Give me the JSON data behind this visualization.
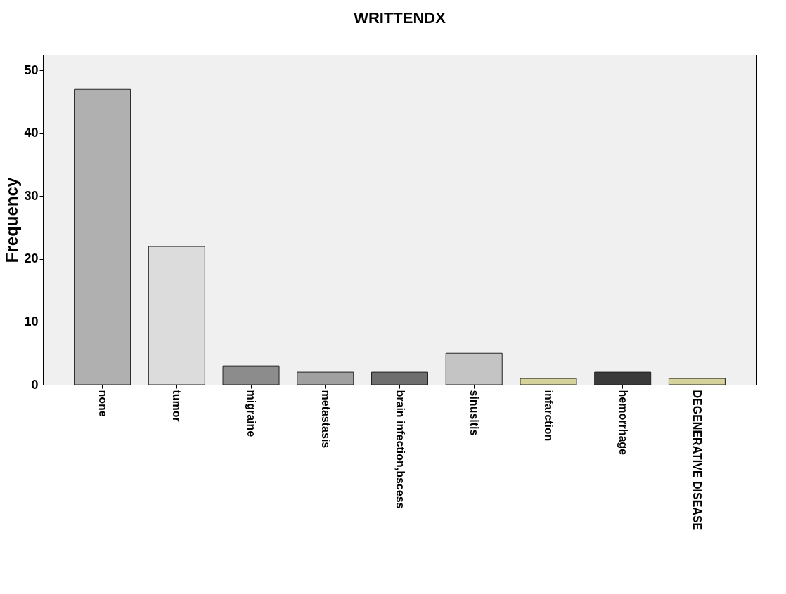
{
  "chart_data": {
    "type": "bar",
    "title": "WRITTENDX",
    "ylabel": "Frequency",
    "categories": [
      "none",
      "tumor",
      "migraine",
      "metastasis",
      "brain infection,bscess",
      "sinusitis",
      "infarction",
      "hemorrhage",
      "DEGENERATIVE DISEASE"
    ],
    "values": [
      47,
      22,
      3,
      2,
      2,
      5,
      1,
      2,
      1
    ],
    "colors": [
      "#b0b0b0",
      "#dcdcdc",
      "#8c8c8c",
      "#a0a0a0",
      "#6e6e6e",
      "#c4c4c4",
      "#d6d29c",
      "#3a3a3a",
      "#d6d29c"
    ],
    "ylim": [
      0,
      52.5
    ],
    "yticks": [
      0,
      10,
      20,
      30,
      40,
      50
    ],
    "grid": false
  }
}
